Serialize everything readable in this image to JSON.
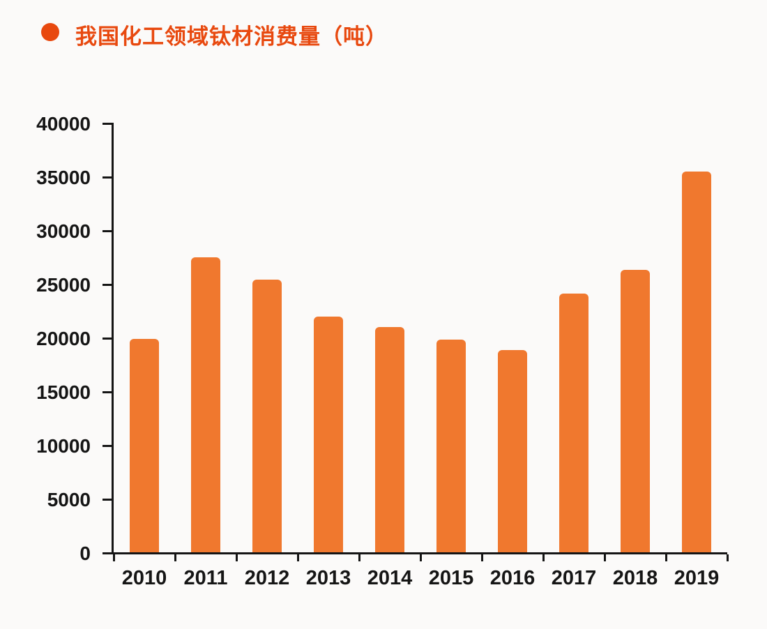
{
  "header": {
    "bullet_icon": "filled-circle",
    "title": "我国化工领域钛材消费量（吨）"
  },
  "chart_data": {
    "type": "bar",
    "title": "我国化工领域钛材消费量（吨）",
    "categories": [
      "2010",
      "2011",
      "2012",
      "2013",
      "2014",
      "2015",
      "2016",
      "2017",
      "2018",
      "2019"
    ],
    "values": [
      19900,
      27450,
      25400,
      21950,
      21000,
      19800,
      18800,
      24100,
      26300,
      35450
    ],
    "unit": "吨",
    "xlabel": "",
    "ylabel": "",
    "ylim": [
      0,
      40000
    ],
    "ytick_step": 5000,
    "ytick_labels": [
      "0",
      "5000",
      "10000",
      "15000",
      "20000",
      "25000",
      "30000",
      "35000",
      "40000"
    ],
    "grid": false,
    "legend_position": "none",
    "bar_color": "#F0782E",
    "title_color": "#E8490F",
    "axis_color": "#151515",
    "background_color": "#FBFAF9"
  }
}
